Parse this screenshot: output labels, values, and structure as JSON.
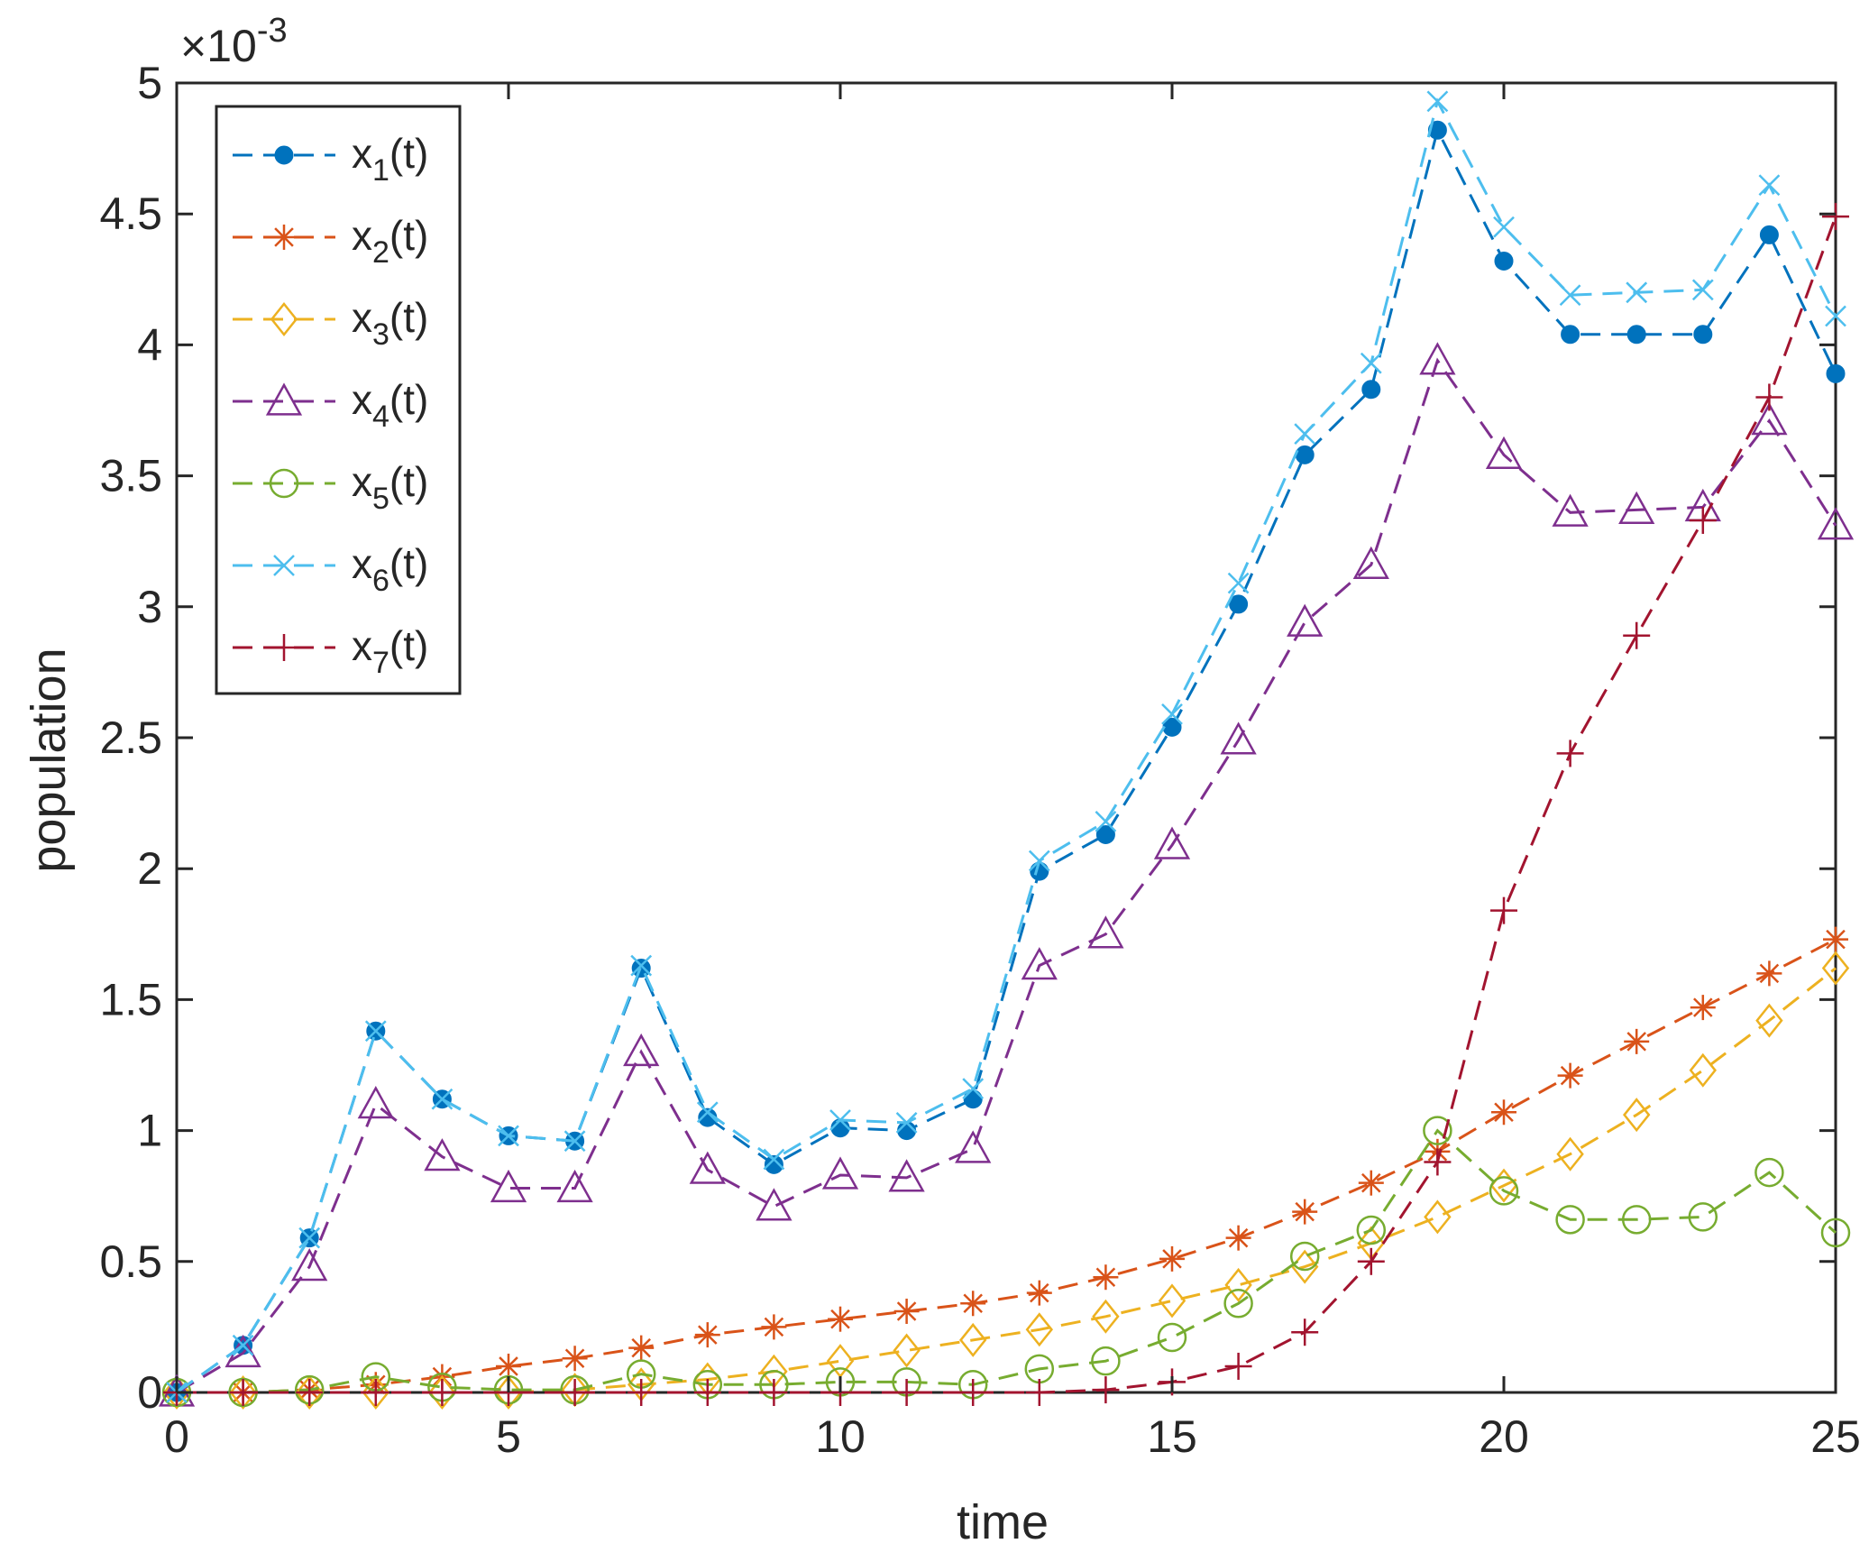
{
  "chart_data": {
    "type": "line",
    "xlabel": "time",
    "ylabel": "population",
    "xlim": [
      0,
      25
    ],
    "ylim": [
      0,
      5
    ],
    "x_ticks": [
      "0",
      "5",
      "10",
      "15",
      "20",
      "25"
    ],
    "y_ticks": [
      "0",
      "0.5",
      "1",
      "1.5",
      "2",
      "2.5",
      "3",
      "3.5",
      "4",
      "4.5",
      "5"
    ],
    "exponent": {
      "base": "×10",
      "power": "-3"
    },
    "grid": false,
    "legend_position": "top-left",
    "x": [
      0,
      1,
      2,
      3,
      4,
      5,
      6,
      7,
      8,
      9,
      10,
      11,
      12,
      13,
      14,
      15,
      16,
      17,
      18,
      19,
      20,
      21,
      22,
      23,
      24,
      25
    ],
    "series": [
      {
        "name": "x",
        "sub": "1",
        "suffix": "(t)",
        "color": "#0072BD",
        "marker": "dot",
        "values": [
          0,
          0.18,
          0.59,
          1.38,
          1.12,
          0.98,
          0.96,
          1.62,
          1.05,
          0.87,
          1.01,
          1.0,
          1.12,
          1.99,
          2.13,
          2.54,
          3.01,
          3.58,
          3.83,
          4.82,
          4.32,
          4.04,
          4.04,
          4.04,
          4.42,
          3.89
        ]
      },
      {
        "name": "x",
        "sub": "2",
        "suffix": "(t)",
        "color": "#D95319",
        "marker": "asterisk",
        "values": [
          0,
          0,
          0.01,
          0.03,
          0.06,
          0.1,
          0.13,
          0.17,
          0.22,
          0.25,
          0.28,
          0.31,
          0.34,
          0.38,
          0.44,
          0.51,
          0.59,
          0.69,
          0.8,
          0.92,
          1.07,
          1.21,
          1.34,
          1.47,
          1.6,
          1.73
        ]
      },
      {
        "name": "x",
        "sub": "3",
        "suffix": "(t)",
        "color": "#EDB120",
        "marker": "diamond",
        "values": [
          0,
          0,
          0,
          0,
          0,
          0,
          0.01,
          0.03,
          0.05,
          0.08,
          0.12,
          0.16,
          0.2,
          0.24,
          0.29,
          0.35,
          0.41,
          0.48,
          0.57,
          0.67,
          0.79,
          0.91,
          1.06,
          1.23,
          1.42,
          1.62
        ]
      },
      {
        "name": "x",
        "sub": "4",
        "suffix": "(t)",
        "color": "#7E2F8E",
        "marker": "triangle",
        "values": [
          0,
          0.15,
          0.48,
          1.1,
          0.9,
          0.78,
          0.78,
          1.3,
          0.85,
          0.71,
          0.83,
          0.82,
          0.93,
          1.63,
          1.75,
          2.09,
          2.49,
          2.94,
          3.16,
          3.94,
          3.58,
          3.36,
          3.37,
          3.38,
          3.71,
          3.31
        ]
      },
      {
        "name": "x",
        "sub": "5",
        "suffix": "(t)",
        "color": "#77AC30",
        "marker": "circle",
        "values": [
          0,
          0,
          0.01,
          0.06,
          0.02,
          0.01,
          0.01,
          0.07,
          0.03,
          0.03,
          0.04,
          0.04,
          0.03,
          0.09,
          0.12,
          0.21,
          0.34,
          0.52,
          0.62,
          1.0,
          0.77,
          0.66,
          0.66,
          0.67,
          0.84,
          0.61
        ]
      },
      {
        "name": "x",
        "sub": "6",
        "suffix": "(t)",
        "color": "#4DBEEE",
        "marker": "cross",
        "values": [
          0,
          0.18,
          0.59,
          1.38,
          1.12,
          0.98,
          0.96,
          1.63,
          1.07,
          0.89,
          1.04,
          1.03,
          1.16,
          2.03,
          2.18,
          2.59,
          3.09,
          3.66,
          3.93,
          4.93,
          4.45,
          4.19,
          4.2,
          4.21,
          4.61,
          4.11
        ]
      },
      {
        "name": "x",
        "sub": "7",
        "suffix": "(t)",
        "color": "#A2142F",
        "marker": "plus",
        "values": [
          0,
          0,
          0,
          0,
          0,
          0,
          0,
          0,
          0,
          0,
          0,
          0,
          0,
          0,
          0.01,
          0.04,
          0.1,
          0.23,
          0.5,
          0.88,
          1.84,
          2.44,
          2.89,
          3.33,
          3.8,
          4.49
        ]
      }
    ]
  }
}
